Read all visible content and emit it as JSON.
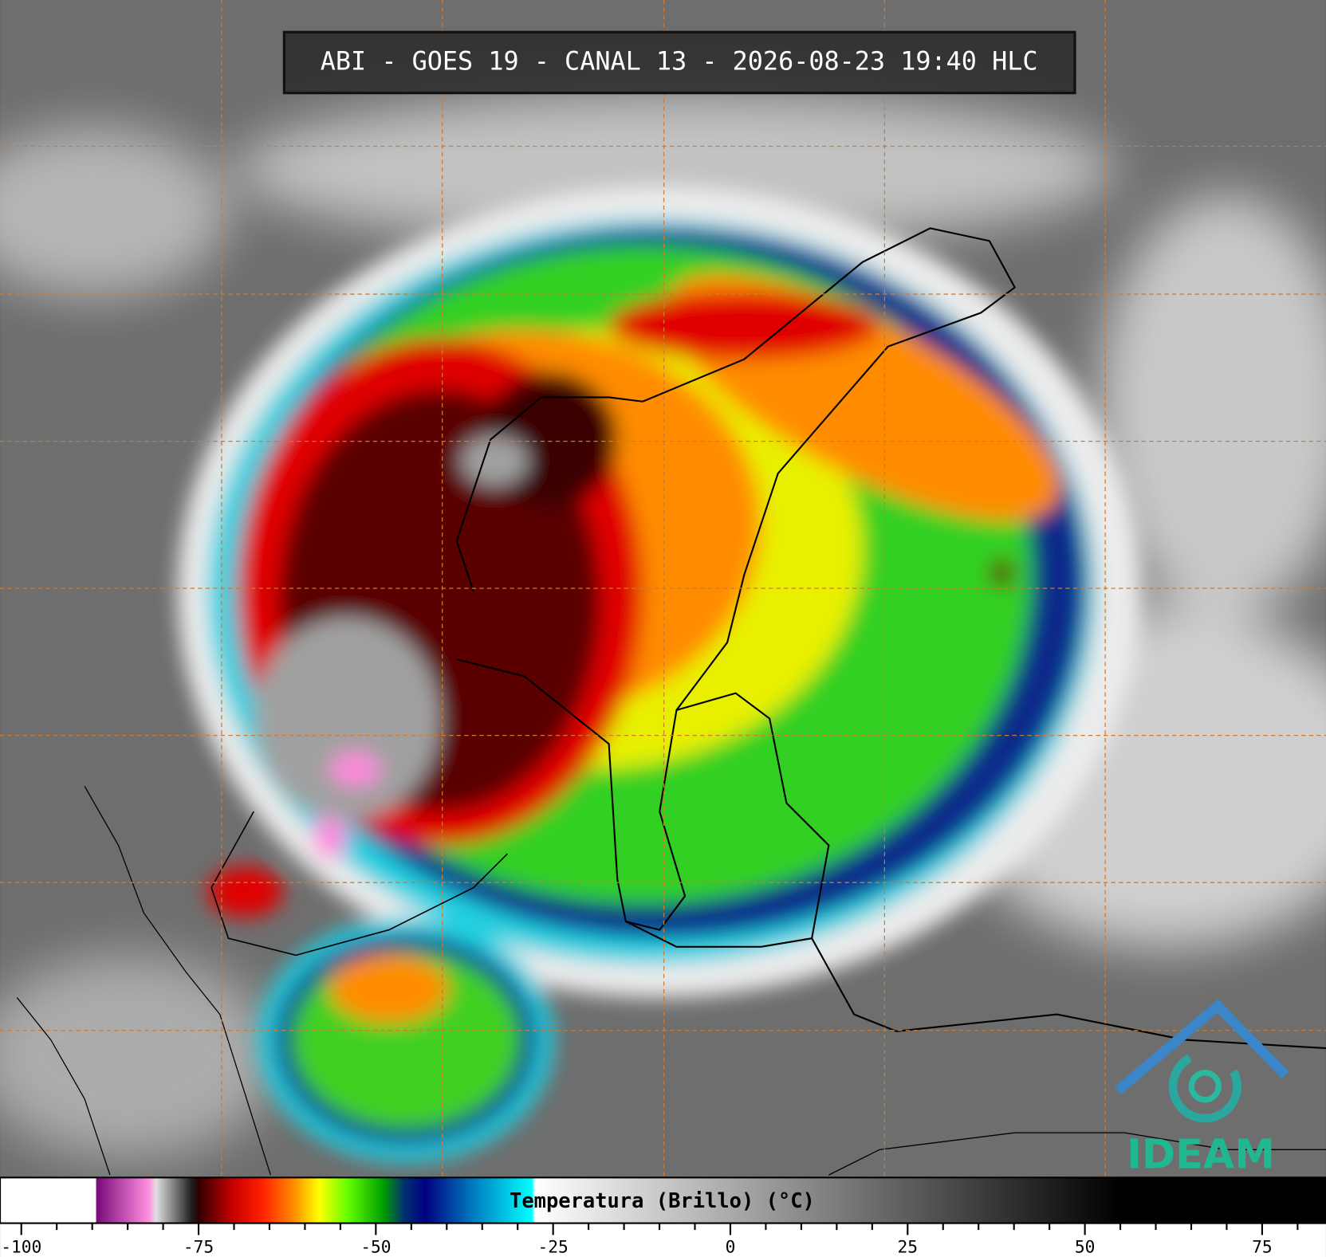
{
  "title": "ABI - GOES 19 - CANAL 13 - 2026-08-23 19:40 HLC",
  "logo": "IDEAM",
  "chart_data": {
    "type": "colorbar",
    "xlabel": "Temperatura (Brillo) (°C)",
    "xlim": [
      -103,
      84
    ],
    "xticks": [
      -100,
      -75,
      -50,
      -25,
      0,
      25,
      50,
      75
    ],
    "minor_xticks": [
      -95,
      -90,
      -85,
      -80,
      -70,
      -65,
      -60,
      -55,
      -45,
      -40,
      -35,
      -30,
      -20,
      -15,
      -10,
      -5,
      5,
      10,
      15,
      20,
      30,
      35,
      40,
      45,
      55,
      60,
      65,
      70,
      80
    ],
    "colorscale": [
      [
        -103,
        "#ffffff"
      ],
      [
        -89.5,
        "#ffffff"
      ],
      [
        -89.4,
        "#7a0a7a"
      ],
      [
        -82,
        "#ff90e0"
      ],
      [
        -81,
        "#e0e0e0"
      ],
      [
        -76,
        "#202020"
      ],
      [
        -75,
        "#300000"
      ],
      [
        -70,
        "#cc0000"
      ],
      [
        -66,
        "#ff2000"
      ],
      [
        -62,
        "#ff8000"
      ],
      [
        -58,
        "#ffff00"
      ],
      [
        -54,
        "#66ff00"
      ],
      [
        -49,
        "#00a000"
      ],
      [
        -46,
        "#003070"
      ],
      [
        -43,
        "#000080"
      ],
      [
        -36,
        "#0080c0"
      ],
      [
        -28,
        "#00ffff"
      ],
      [
        -27.5,
        "#ffffff"
      ],
      [
        55,
        "#000000"
      ],
      [
        84,
        "#000000"
      ]
    ]
  }
}
